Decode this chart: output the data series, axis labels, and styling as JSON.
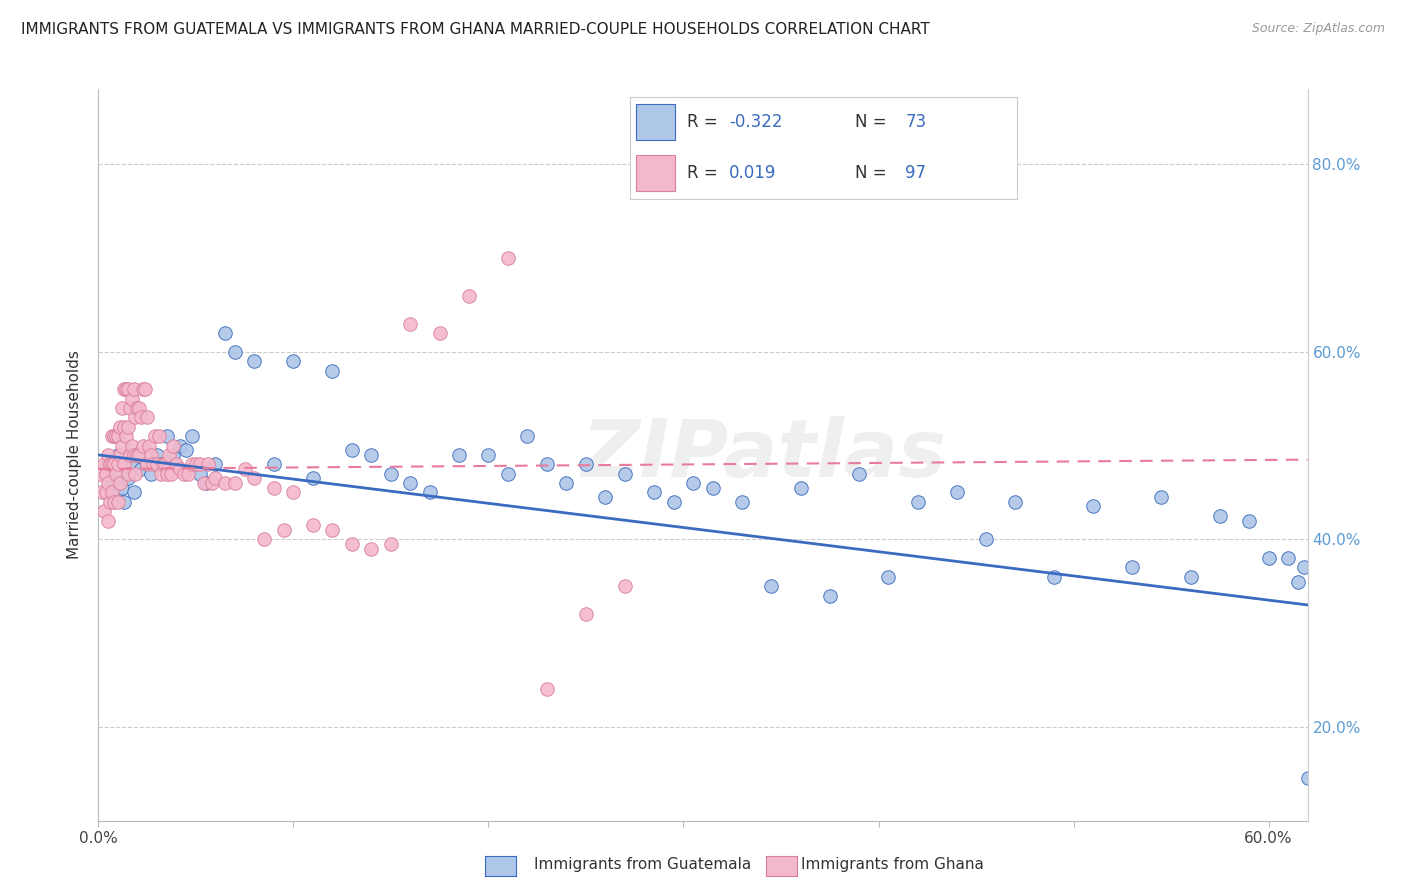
{
  "title": "IMMIGRANTS FROM GUATEMALA VS IMMIGRANTS FROM GHANA MARRIED-COUPLE HOUSEHOLDS CORRELATION CHART",
  "source": "Source: ZipAtlas.com",
  "xlabel_blue": "Immigrants from Guatemala",
  "xlabel_pink": "Immigrants from Ghana",
  "ylabel": "Married-couple Households",
  "R_blue": -0.322,
  "N_blue": 73,
  "R_pink": 0.019,
  "N_pink": 97,
  "color_blue": "#aec6e8",
  "color_pink": "#f4b8cc",
  "line_blue": "#3a6bbf",
  "line_pink": "#e87a9a",
  "watermark": "ZIPatlas",
  "xlim": [
    0.0,
    0.62
  ],
  "ylim": [
    0.1,
    0.88
  ],
  "xtick_left": 0.0,
  "xtick_right": 0.6,
  "yticks": [
    0.2,
    0.4,
    0.6,
    0.8
  ],
  "blue_x": [
    0.005,
    0.007,
    0.008,
    0.009,
    0.01,
    0.01,
    0.012,
    0.013,
    0.015,
    0.015,
    0.017,
    0.018,
    0.02,
    0.022,
    0.025,
    0.027,
    0.03,
    0.032,
    0.035,
    0.038,
    0.042,
    0.045,
    0.048,
    0.052,
    0.055,
    0.06,
    0.065,
    0.07,
    0.08,
    0.09,
    0.1,
    0.11,
    0.12,
    0.13,
    0.14,
    0.15,
    0.16,
    0.17,
    0.185,
    0.2,
    0.21,
    0.22,
    0.23,
    0.24,
    0.25,
    0.26,
    0.27,
    0.285,
    0.295,
    0.305,
    0.315,
    0.33,
    0.345,
    0.36,
    0.375,
    0.39,
    0.405,
    0.42,
    0.44,
    0.455,
    0.47,
    0.49,
    0.51,
    0.53,
    0.545,
    0.56,
    0.575,
    0.59,
    0.6,
    0.61,
    0.615,
    0.618,
    0.62
  ],
  "blue_y": [
    0.48,
    0.46,
    0.47,
    0.45,
    0.49,
    0.46,
    0.455,
    0.44,
    0.49,
    0.465,
    0.48,
    0.45,
    0.49,
    0.475,
    0.48,
    0.47,
    0.49,
    0.48,
    0.51,
    0.49,
    0.5,
    0.495,
    0.51,
    0.47,
    0.46,
    0.48,
    0.62,
    0.6,
    0.59,
    0.48,
    0.59,
    0.465,
    0.58,
    0.495,
    0.49,
    0.47,
    0.46,
    0.45,
    0.49,
    0.49,
    0.47,
    0.51,
    0.48,
    0.46,
    0.48,
    0.445,
    0.47,
    0.45,
    0.44,
    0.46,
    0.455,
    0.44,
    0.35,
    0.455,
    0.34,
    0.47,
    0.36,
    0.44,
    0.45,
    0.4,
    0.44,
    0.36,
    0.435,
    0.37,
    0.445,
    0.36,
    0.425,
    0.42,
    0.38,
    0.38,
    0.355,
    0.37,
    0.145
  ],
  "pink_x": [
    0.001,
    0.002,
    0.003,
    0.003,
    0.004,
    0.004,
    0.005,
    0.005,
    0.005,
    0.006,
    0.006,
    0.007,
    0.007,
    0.007,
    0.008,
    0.008,
    0.008,
    0.009,
    0.009,
    0.01,
    0.01,
    0.01,
    0.011,
    0.011,
    0.011,
    0.012,
    0.012,
    0.013,
    0.013,
    0.013,
    0.014,
    0.014,
    0.015,
    0.015,
    0.015,
    0.016,
    0.016,
    0.017,
    0.017,
    0.018,
    0.018,
    0.019,
    0.019,
    0.02,
    0.02,
    0.021,
    0.021,
    0.022,
    0.023,
    0.023,
    0.024,
    0.025,
    0.025,
    0.026,
    0.027,
    0.028,
    0.029,
    0.03,
    0.031,
    0.032,
    0.033,
    0.034,
    0.035,
    0.036,
    0.037,
    0.038,
    0.04,
    0.042,
    0.044,
    0.046,
    0.048,
    0.05,
    0.052,
    0.054,
    0.056,
    0.058,
    0.06,
    0.065,
    0.07,
    0.075,
    0.08,
    0.085,
    0.09,
    0.095,
    0.1,
    0.11,
    0.12,
    0.13,
    0.14,
    0.15,
    0.16,
    0.175,
    0.19,
    0.21,
    0.23,
    0.25,
    0.27
  ],
  "pink_y": [
    0.47,
    0.45,
    0.48,
    0.43,
    0.47,
    0.45,
    0.49,
    0.46,
    0.42,
    0.48,
    0.44,
    0.51,
    0.48,
    0.45,
    0.51,
    0.48,
    0.44,
    0.51,
    0.47,
    0.51,
    0.48,
    0.44,
    0.52,
    0.49,
    0.46,
    0.54,
    0.5,
    0.56,
    0.52,
    0.48,
    0.56,
    0.51,
    0.56,
    0.52,
    0.47,
    0.54,
    0.49,
    0.55,
    0.5,
    0.56,
    0.49,
    0.53,
    0.47,
    0.54,
    0.49,
    0.54,
    0.49,
    0.53,
    0.56,
    0.5,
    0.56,
    0.53,
    0.48,
    0.5,
    0.49,
    0.48,
    0.51,
    0.48,
    0.51,
    0.47,
    0.48,
    0.48,
    0.47,
    0.49,
    0.47,
    0.5,
    0.48,
    0.475,
    0.47,
    0.47,
    0.48,
    0.48,
    0.48,
    0.46,
    0.48,
    0.46,
    0.465,
    0.46,
    0.46,
    0.475,
    0.465,
    0.4,
    0.455,
    0.41,
    0.45,
    0.415,
    0.41,
    0.395,
    0.39,
    0.395,
    0.63,
    0.62,
    0.66,
    0.7,
    0.24,
    0.32,
    0.35
  ]
}
